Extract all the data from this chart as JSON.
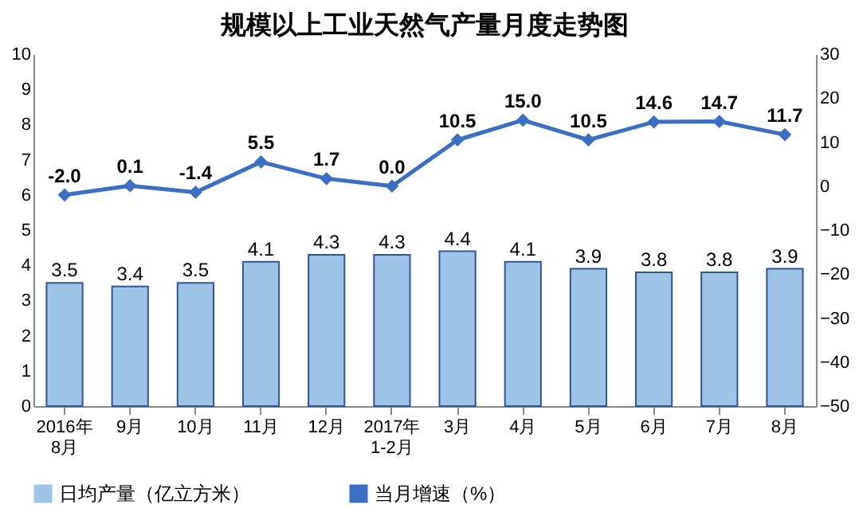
{
  "chart_data": {
    "type": "bar",
    "title": "规模以上工业天然气产量月度走势图",
    "categories": [
      "2016年\n8月",
      "9月",
      "10月",
      "11月",
      "12月",
      "2017年\n1-2月",
      "3月",
      "4月",
      "5月",
      "6月",
      "7月",
      "8月"
    ],
    "series": [
      {
        "name": "日均产量（亿立方米）",
        "color": "#9dc3e6",
        "values": [
          3.5,
          3.4,
          3.5,
          4.1,
          4.3,
          4.3,
          4.4,
          4.1,
          3.9,
          3.8,
          3.8,
          3.9
        ],
        "value_labels": [
          "3.5",
          "3.4",
          "3.5",
          "4.1",
          "4.3",
          "4.3",
          "4.4",
          "4.1",
          "3.9",
          "3.8",
          "3.8",
          "3.9"
        ]
      },
      {
        "name": "当月增速（%）",
        "type": "line",
        "axis": "y2",
        "color": "#3a6fc4",
        "values": [
          -2.0,
          0.1,
          -1.4,
          5.5,
          1.7,
          0.0,
          10.5,
          15.0,
          10.5,
          14.6,
          14.7,
          11.7
        ],
        "value_labels": [
          "-2.0",
          "0.1",
          "-1.4",
          "5.5",
          "1.7",
          "0.0",
          "10.5",
          "15.0",
          "10.5",
          "14.6",
          "14.7",
          "11.7"
        ]
      }
    ],
    "ylim": [
      0,
      10
    ],
    "yticks": [
      0,
      1,
      2,
      3,
      4,
      5,
      6,
      7,
      8,
      9,
      10
    ],
    "y2lim": [
      -50,
      30
    ],
    "y2ticks": [
      -50,
      -40,
      -30,
      -20,
      -10,
      0,
      10,
      20,
      30
    ],
    "marker": "diamond",
    "line_style": "solid",
    "legend": "bottom",
    "grid": false
  }
}
